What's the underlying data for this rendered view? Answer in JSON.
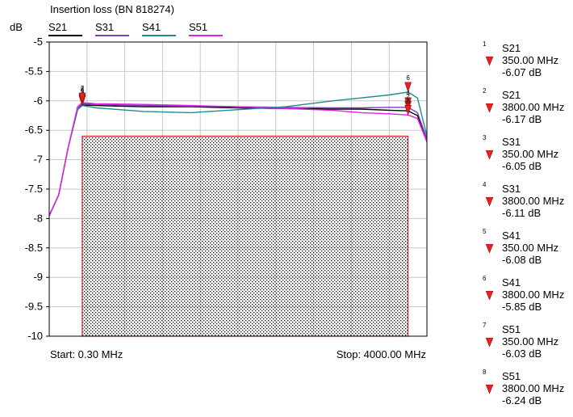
{
  "chart_data": {
    "type": "line",
    "title": "Insertion loss (BN 818274)",
    "y_unit": "dB",
    "ylim": [
      -10,
      -5
    ],
    "xlim": [
      0.3,
      4000.0
    ],
    "y_ticks": [
      "-5",
      "-5.5",
      "-6",
      "-6.5",
      "-7",
      "-7.5",
      "-8",
      "-8.5",
      "-9",
      "-9.5",
      "-10"
    ],
    "start_label": "Start: 0.30 MHz",
    "stop_label": "Stop: 4000.00 MHz",
    "grid": true,
    "legend_position": "top",
    "limit_region": {
      "x": [
        350,
        3800
      ],
      "y": [
        -10,
        -6.6
      ],
      "fill": "dotted",
      "border_color": "#e32222"
    },
    "series": [
      {
        "name": "S21",
        "color": "#000000",
        "x": [
          0.3,
          100,
          200,
          300,
          350,
          500,
          1000,
          1500,
          2000,
          2500,
          3000,
          3300,
          3600,
          3800,
          3900,
          4000
        ],
        "y": [
          -7.95,
          -7.6,
          -6.8,
          -6.15,
          -6.07,
          -6.08,
          -6.1,
          -6.1,
          -6.12,
          -6.13,
          -6.14,
          -6.14,
          -6.16,
          -6.17,
          -6.25,
          -6.65
        ]
      },
      {
        "name": "S31",
        "color": "#7b3fc0",
        "x": [
          0.3,
          100,
          200,
          300,
          350,
          500,
          1000,
          1500,
          2000,
          2500,
          3000,
          3300,
          3600,
          3800,
          3900,
          4000
        ],
        "y": [
          -7.95,
          -7.6,
          -6.8,
          -6.13,
          -6.05,
          -6.06,
          -6.08,
          -6.09,
          -6.1,
          -6.11,
          -6.12,
          -6.12,
          -6.11,
          -6.11,
          -6.2,
          -6.65
        ]
      },
      {
        "name": "S41",
        "color": "#1d8c8c",
        "x": [
          0.3,
          100,
          200,
          300,
          350,
          500,
          1000,
          1500,
          2000,
          2500,
          3000,
          3300,
          3600,
          3800,
          3900,
          4000
        ],
        "y": [
          -7.95,
          -7.6,
          -6.8,
          -6.15,
          -6.08,
          -6.12,
          -6.18,
          -6.2,
          -6.15,
          -6.1,
          -6.0,
          -5.95,
          -5.9,
          -5.85,
          -5.95,
          -6.6
        ]
      },
      {
        "name": "S51",
        "color": "#e61ee6",
        "x": [
          0.3,
          100,
          200,
          300,
          350,
          500,
          1000,
          1500,
          2000,
          2500,
          3000,
          3300,
          3600,
          3800,
          3900,
          4000
        ],
        "y": [
          -7.95,
          -7.6,
          -6.8,
          -6.1,
          -6.03,
          -6.05,
          -6.06,
          -6.08,
          -6.1,
          -6.13,
          -6.16,
          -6.2,
          -6.22,
          -6.24,
          -6.3,
          -6.7
        ]
      }
    ],
    "markers": [
      {
        "num": "1",
        "trace": "S21",
        "freq_label": "350.00 MHz",
        "value_label": "-6.07 dB",
        "x": 350,
        "y": -6.07
      },
      {
        "num": "2",
        "trace": "S21",
        "freq_label": "3800.00 MHz",
        "value_label": "-6.17 dB",
        "x": 3800,
        "y": -6.17
      },
      {
        "num": "3",
        "trace": "S31",
        "freq_label": "350.00 MHz",
        "value_label": "-6.05 dB",
        "x": 350,
        "y": -6.05
      },
      {
        "num": "4",
        "trace": "S31",
        "freq_label": "3800.00 MHz",
        "value_label": "-6.11 dB",
        "x": 3800,
        "y": -6.11
      },
      {
        "num": "5",
        "trace": "S41",
        "freq_label": "350.00 MHz",
        "value_label": "-6.08 dB",
        "x": 350,
        "y": -6.08
      },
      {
        "num": "6",
        "trace": "S41",
        "freq_label": "3800.00 MHz",
        "value_label": "-5.85 dB",
        "x": 3800,
        "y": -5.85
      },
      {
        "num": "7",
        "trace": "S51",
        "freq_label": "350.00 MHz",
        "value_label": "-6.03 dB",
        "x": 350,
        "y": -6.03
      },
      {
        "num": "8",
        "trace": "S51",
        "freq_label": "3800.00 MHz",
        "value_label": "-6.24 dB",
        "x": 3800,
        "y": -6.24
      }
    ],
    "marker_icon_color": "#e32222"
  }
}
